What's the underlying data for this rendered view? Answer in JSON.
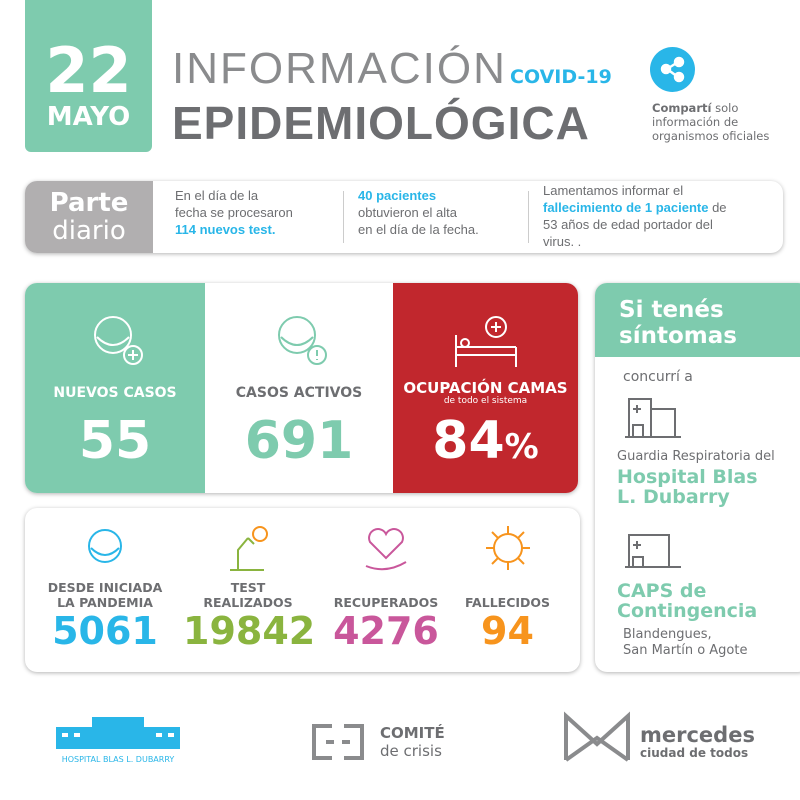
{
  "header": {
    "day": "22",
    "month": "MAYO",
    "title_line1": "INFORMACIÓN",
    "covid": "COVID-19",
    "title_line2": "EPIDEMIOLÓGICA",
    "share_bold": "Compartí",
    "share_rest": " solo",
    "share_line2": "información de",
    "share_line3": "organismos oficiales",
    "share_icon": "share-icon"
  },
  "parte": {
    "label1": "Parte",
    "label2": "diario",
    "col1": {
      "l1": "En el día de la",
      "l2": "fecha se procesaron",
      "hl": "114 nuevos test."
    },
    "col2": {
      "hl": "40 pacientes",
      "l1": "obtuvieron el alta",
      "l2": "en el día de la fecha."
    },
    "col3": {
      "l1": "Lamentamos informar el",
      "hl": "fallecimiento de 1 paciente",
      "after": " de",
      "l2": "53 años de edad portador del",
      "l3": "virus. ."
    }
  },
  "cards": [
    {
      "label": "NUEVOS  CASOS",
      "value": "55",
      "color": "#7ecbae"
    },
    {
      "label": "CASOS ACTIVOS",
      "value": "691",
      "color": "#ffffff"
    },
    {
      "label": "OCUPACIÓN CAMAS",
      "sublabel": "de todo el sistema",
      "value": "84",
      "unit": "%",
      "color": "#c1272d"
    }
  ],
  "stats": [
    {
      "label1": "DESDE INICIADA",
      "label2": "LA PANDEMIA",
      "value": "5061",
      "color": "#29b6e8"
    },
    {
      "label1": "TEST",
      "label2": "REALIZADOS",
      "value": "19842",
      "color": "#8ab43f"
    },
    {
      "label1": "RECUPERADOS",
      "value": "4276",
      "color": "#c9579b"
    },
    {
      "label1": "FALLECIDOS",
      "value": "94",
      "color": "#f7941d"
    }
  ],
  "side": {
    "title1": "Si tenés",
    "title2": "síntomas",
    "concurri": "concurrí a",
    "guardia": "Guardia Respiratoria del",
    "hospital1": "Hospital Blas",
    "hospital2": "L. Dubarry",
    "caps1": "CAPS de",
    "caps2": "Contingencia",
    "addr1": "Blandengues,",
    "addr2": "San Martín o Agote"
  },
  "footer": {
    "hospital": "HOSPITAL BLAS L. DUBARRY",
    "comite1": "COMITÉ",
    "comite2": "de crisis",
    "mercedes1": "mercedes",
    "mercedes2": "ciudad de todos"
  }
}
